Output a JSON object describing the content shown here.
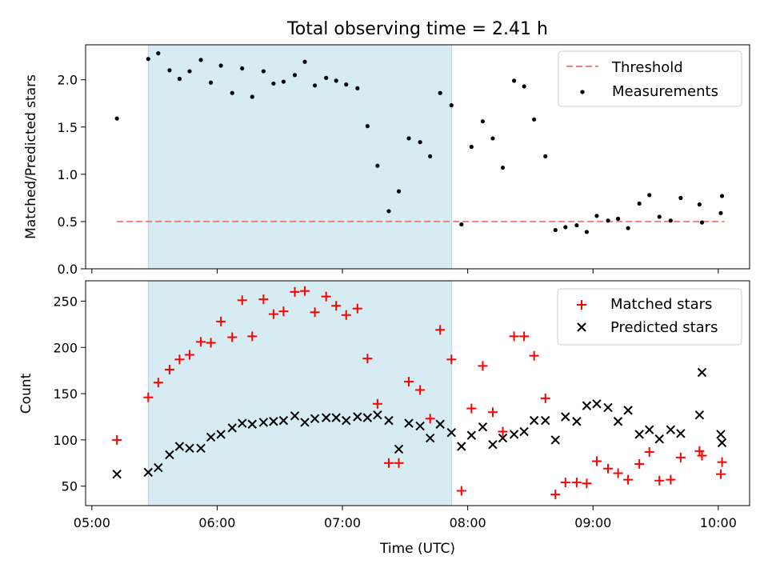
{
  "chart_data": [
    {
      "type": "scatter",
      "title": "Total observing time = 2.41 h",
      "ylabel": "Matched/Predicted stars",
      "xlabel": "",
      "xlim_hours": [
        4.95,
        10.25
      ],
      "ylim": [
        0,
        2.37
      ],
      "yticks": [
        "0.0",
        "0.5",
        "1.0",
        "1.5",
        "2.0"
      ],
      "ytick_values": [
        0,
        0.5,
        1.0,
        1.5,
        2.0
      ],
      "shaded_span_hours": [
        5.45,
        7.87
      ],
      "shade_color": "#add8e6",
      "legend_position": "upper right",
      "threshold": {
        "name": "Threshold",
        "y": 0.5,
        "x_range_hours": [
          5.2,
          10.05
        ],
        "color": "#f08080",
        "style": "dashed"
      },
      "series": [
        {
          "name": "Measurements",
          "color": "#000000",
          "marker": "dot",
          "x_hours": [
            5.2,
            5.45,
            5.53,
            5.62,
            5.7,
            5.78,
            5.87,
            5.95,
            6.03,
            6.12,
            6.2,
            6.28,
            6.37,
            6.45,
            6.53,
            6.62,
            6.7,
            6.78,
            6.87,
            6.95,
            7.03,
            7.12,
            7.2,
            7.28,
            7.37,
            7.45,
            7.53,
            7.62,
            7.7,
            7.78,
            7.87,
            7.95,
            8.03,
            8.12,
            8.2,
            8.28,
            8.37,
            8.45,
            8.53,
            8.62,
            8.7,
            8.78,
            8.87,
            8.95,
            9.03,
            9.12,
            9.2,
            9.28,
            9.37,
            9.45,
            9.53,
            9.62,
            9.7,
            9.85,
            9.87,
            10.02,
            10.03
          ],
          "y": [
            1.59,
            2.22,
            2.28,
            2.1,
            2.01,
            2.09,
            2.21,
            1.97,
            2.15,
            1.86,
            2.12,
            1.82,
            2.09,
            1.96,
            1.98,
            2.05,
            2.19,
            1.94,
            2.02,
            1.99,
            1.95,
            1.91,
            1.51,
            1.09,
            0.61,
            0.82,
            1.38,
            1.34,
            1.19,
            1.86,
            1.73,
            0.47,
            1.29,
            1.56,
            1.38,
            1.07,
            1.99,
            1.93,
            1.58,
            1.19,
            0.41,
            0.44,
            0.46,
            0.39,
            0.56,
            0.51,
            0.53,
            0.43,
            0.69,
            0.78,
            0.55,
            0.51,
            0.75,
            0.68,
            0.49,
            0.59,
            0.77
          ]
        }
      ]
    },
    {
      "type": "scatter",
      "title": "",
      "ylabel": "Count",
      "xlabel": "Time (UTC)",
      "xlim_hours": [
        4.95,
        10.25
      ],
      "xticks": [
        "05:00",
        "06:00",
        "07:00",
        "08:00",
        "09:00",
        "10:00"
      ],
      "xtick_hours": [
        5,
        6,
        7,
        8,
        9,
        10
      ],
      "ylim": [
        29,
        272
      ],
      "yticks": [
        "50",
        "100",
        "150",
        "200",
        "250"
      ],
      "ytick_values": [
        50,
        100,
        150,
        200,
        250
      ],
      "shaded_span_hours": [
        5.45,
        7.87
      ],
      "shade_color": "#add8e6",
      "legend_position": "upper right",
      "series": [
        {
          "name": "Matched stars",
          "color": "#ff0000",
          "marker": "plus",
          "x_hours": [
            5.2,
            5.45,
            5.53,
            5.62,
            5.7,
            5.78,
            5.87,
            5.95,
            6.03,
            6.12,
            6.2,
            6.28,
            6.37,
            6.45,
            6.53,
            6.62,
            6.7,
            6.78,
            6.87,
            6.95,
            7.03,
            7.12,
            7.2,
            7.28,
            7.37,
            7.45,
            7.53,
            7.62,
            7.7,
            7.78,
            7.87,
            7.95,
            8.03,
            8.12,
            8.2,
            8.28,
            8.37,
            8.45,
            8.53,
            8.62,
            8.7,
            8.78,
            8.87,
            8.95,
            9.03,
            9.12,
            9.2,
            9.28,
            9.37,
            9.45,
            9.53,
            9.62,
            9.7,
            9.85,
            9.87,
            10.02,
            10.03
          ],
          "y": [
            100,
            146,
            162,
            176,
            187,
            192,
            206,
            205,
            228,
            211,
            251,
            212,
            252,
            236,
            239,
            260,
            261,
            238,
            255,
            245,
            235,
            242,
            188,
            139,
            75,
            75,
            163,
            154,
            123,
            219,
            187,
            45,
            134,
            180,
            130,
            109,
            212,
            212,
            191,
            145,
            41,
            54,
            54,
            53,
            77,
            69,
            64,
            57,
            74,
            87,
            56,
            57,
            81,
            88,
            83,
            63,
            76
          ]
        },
        {
          "name": "Predicted stars",
          "color": "#000000",
          "marker": "x",
          "x_hours": [
            5.2,
            5.45,
            5.53,
            5.62,
            5.7,
            5.78,
            5.87,
            5.95,
            6.03,
            6.12,
            6.2,
            6.28,
            6.37,
            6.45,
            6.53,
            6.62,
            6.7,
            6.78,
            6.87,
            6.95,
            7.03,
            7.12,
            7.2,
            7.28,
            7.37,
            7.45,
            7.53,
            7.62,
            7.7,
            7.78,
            7.87,
            7.95,
            8.03,
            8.12,
            8.2,
            8.28,
            8.37,
            8.45,
            8.53,
            8.62,
            8.7,
            8.78,
            8.87,
            8.95,
            9.03,
            9.12,
            9.2,
            9.28,
            9.37,
            9.45,
            9.53,
            9.62,
            9.7,
            9.85,
            9.87,
            10.02,
            10.03
          ],
          "y": [
            63,
            65,
            70,
            84,
            93,
            91,
            91,
            103,
            106,
            113,
            118,
            117,
            119,
            120,
            121,
            126,
            119,
            123,
            124,
            124,
            121,
            125,
            124,
            127,
            121,
            90,
            118,
            115,
            102,
            117,
            108,
            93,
            105,
            114,
            95,
            102,
            106,
            109,
            121,
            121,
            100,
            125,
            120,
            137,
            139,
            135,
            120,
            132,
            106,
            111,
            101,
            111,
            107,
            127,
            173,
            106,
            97
          ]
        }
      ]
    }
  ]
}
